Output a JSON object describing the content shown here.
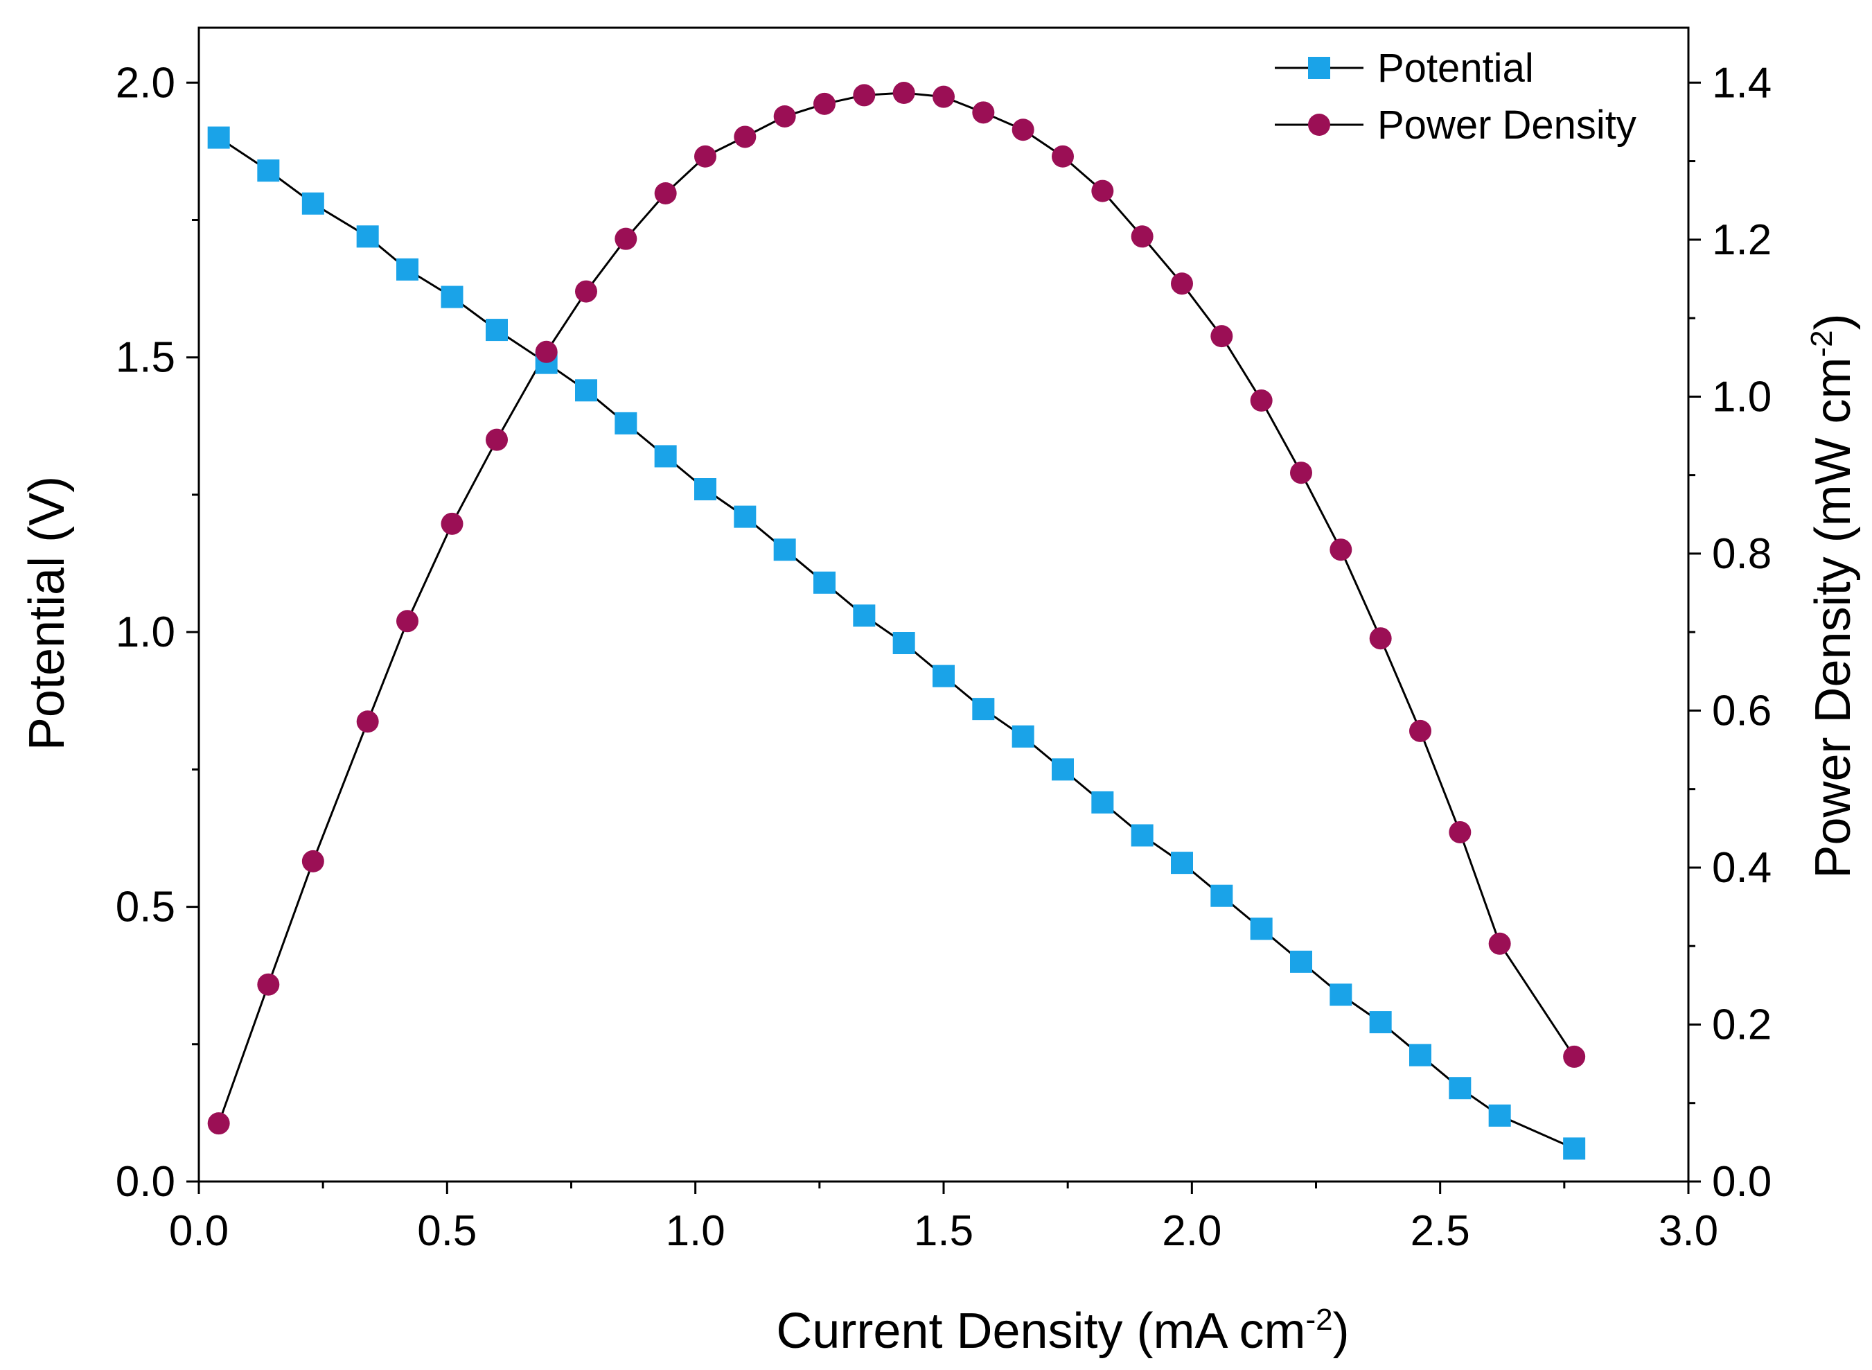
{
  "chart_data": {
    "type": "line",
    "title": "",
    "xlabel": "Current Density (mA cm",
    "xlabel_sup": "-2",
    "xlabel_end": ")",
    "ylabel_left": "Potential (V)",
    "ylabel_right": "Power Density (mW cm",
    "ylabel_right_sup": "-2",
    "ylabel_right_end": ")",
    "xlim": [
      0.0,
      3.0
    ],
    "ylim_left": [
      0.0,
      2.1
    ],
    "ylim_right": [
      0.0,
      1.47
    ],
    "x_ticks": [
      "0.0",
      "0.5",
      "1.0",
      "1.5",
      "2.0",
      "2.5",
      "3.0"
    ],
    "y_left_ticks": [
      "0.0",
      "0.5",
      "1.0",
      "1.5",
      "2.0"
    ],
    "y_right_ticks": [
      "0.0",
      "0.2",
      "0.4",
      "0.6",
      "0.8",
      "1.0",
      "1.2",
      "1.4"
    ],
    "grid": false,
    "legend_position": "top-right",
    "series": [
      {
        "name": "Potential",
        "axis": "left",
        "marker": "square",
        "color": "#1aa3e8",
        "x": [
          0.04,
          0.14,
          0.23,
          0.34,
          0.42,
          0.51,
          0.6,
          0.7,
          0.78,
          0.86,
          0.94,
          1.02,
          1.1,
          1.18,
          1.26,
          1.34,
          1.42,
          1.5,
          1.58,
          1.66,
          1.74,
          1.82,
          1.9,
          1.98,
          2.06,
          2.14,
          2.22,
          2.3,
          2.38,
          2.46,
          2.54,
          2.62,
          2.77
        ],
        "y": [
          1.9,
          1.84,
          1.78,
          1.72,
          1.66,
          1.61,
          1.55,
          1.49,
          1.44,
          1.38,
          1.32,
          1.26,
          1.21,
          1.15,
          1.09,
          1.03,
          0.98,
          0.92,
          0.86,
          0.81,
          0.75,
          0.69,
          0.63,
          0.58,
          0.52,
          0.46,
          0.4,
          0.34,
          0.29,
          0.23,
          0.17,
          0.12,
          0.06
        ]
      },
      {
        "name": "Power Density",
        "axis": "right",
        "marker": "circle",
        "color": "#9b0f55",
        "x": [
          0.04,
          0.14,
          0.23,
          0.34,
          0.42,
          0.51,
          0.6,
          0.7,
          0.78,
          0.86,
          0.94,
          1.02,
          1.1,
          1.18,
          1.26,
          1.34,
          1.42,
          1.5,
          1.58,
          1.66,
          1.74,
          1.82,
          1.9,
          1.98,
          2.06,
          2.14,
          2.22,
          2.3,
          2.38,
          2.46,
          2.54,
          2.62,
          2.77
        ],
        "y": [
          0.074,
          0.251,
          0.408,
          0.586,
          0.714,
          0.838,
          0.945,
          1.057,
          1.134,
          1.201,
          1.259,
          1.306,
          1.331,
          1.357,
          1.373,
          1.384,
          1.387,
          1.382,
          1.362,
          1.34,
          1.306,
          1.262,
          1.204,
          1.144,
          1.077,
          0.995,
          0.903,
          0.805,
          0.692,
          0.574,
          0.445,
          0.303,
          0.159
        ]
      }
    ]
  }
}
